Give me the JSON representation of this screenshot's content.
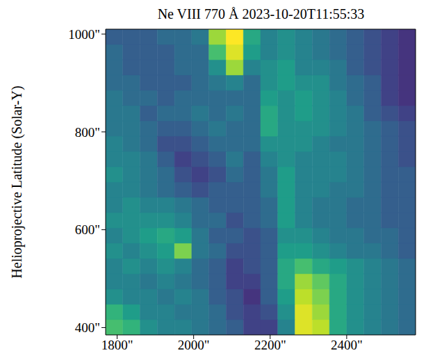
{
  "chart_data": {
    "type": "heatmap",
    "title": "Ne VIII 770 Å 2023-10-20T11:55:33",
    "y_label": "Helioprojective Latitude (Solar-Y)",
    "xlim": [
      1770,
      2580
    ],
    "ylim": [
      385,
      1010
    ],
    "xticks": [
      {
        "value": 1800,
        "label": "1800\""
      },
      {
        "value": 2000,
        "label": "2000\""
      },
      {
        "value": 2200,
        "label": "2200\""
      },
      {
        "value": 2400,
        "label": "2400\""
      }
    ],
    "yticks": [
      {
        "value": 400,
        "label": "400\""
      },
      {
        "value": 600,
        "label": "600\""
      },
      {
        "value": 800,
        "label": "800\""
      },
      {
        "value": 1000,
        "label": "1000\""
      }
    ],
    "grid": false,
    "color": "viridis",
    "value_range": [
      0,
      1
    ],
    "x_edges": [
      1770,
      1815,
      1860,
      1905,
      1950,
      1995,
      2040,
      2085,
      2130,
      2175,
      2220,
      2265,
      2310,
      2355,
      2400,
      2445,
      2490,
      2535,
      2580
    ],
    "y_edges": [
      385,
      416.25,
      447.5,
      478.75,
      510,
      541.25,
      572.5,
      603.75,
      635,
      666.25,
      697.5,
      728.75,
      760,
      791.25,
      822.5,
      853.75,
      885,
      916.25,
      947.5,
      978.75,
      1010
    ],
    "cells": [
      [
        0.7,
        0.65,
        0.5,
        0.45,
        0.45,
        0.4,
        0.35,
        0.3,
        0.2,
        0.2,
        0.45,
        0.95,
        0.9,
        0.6,
        0.5,
        0.45,
        0.4,
        0.35
      ],
      [
        0.65,
        0.55,
        0.45,
        0.45,
        0.4,
        0.4,
        0.35,
        0.25,
        0.2,
        0.25,
        0.5,
        0.95,
        0.85,
        0.6,
        0.5,
        0.45,
        0.4,
        0.35
      ],
      [
        0.5,
        0.45,
        0.45,
        0.4,
        0.45,
        0.4,
        0.3,
        0.25,
        0.15,
        0.3,
        0.55,
        0.9,
        0.8,
        0.6,
        0.5,
        0.45,
        0.4,
        0.35
      ],
      [
        0.45,
        0.45,
        0.4,
        0.45,
        0.4,
        0.35,
        0.3,
        0.2,
        0.2,
        0.3,
        0.6,
        0.85,
        0.75,
        0.6,
        0.5,
        0.45,
        0.4,
        0.35
      ],
      [
        0.45,
        0.5,
        0.45,
        0.5,
        0.45,
        0.35,
        0.3,
        0.2,
        0.25,
        0.3,
        0.6,
        0.7,
        0.6,
        0.55,
        0.5,
        0.45,
        0.4,
        0.35
      ],
      [
        0.5,
        0.45,
        0.5,
        0.55,
        0.8,
        0.4,
        0.35,
        0.25,
        0.25,
        0.3,
        0.55,
        0.55,
        0.5,
        0.45,
        0.4,
        0.4,
        0.35,
        0.3
      ],
      [
        0.45,
        0.5,
        0.55,
        0.6,
        0.55,
        0.4,
        0.3,
        0.3,
        0.25,
        0.3,
        0.5,
        0.5,
        0.45,
        0.4,
        0.4,
        0.35,
        0.35,
        0.3
      ],
      [
        0.5,
        0.5,
        0.5,
        0.5,
        0.45,
        0.35,
        0.35,
        0.25,
        0.3,
        0.35,
        0.55,
        0.45,
        0.4,
        0.4,
        0.35,
        0.35,
        0.3,
        0.3
      ],
      [
        0.45,
        0.5,
        0.45,
        0.45,
        0.4,
        0.35,
        0.3,
        0.3,
        0.3,
        0.35,
        0.55,
        0.45,
        0.4,
        0.4,
        0.35,
        0.35,
        0.3,
        0.3
      ],
      [
        0.45,
        0.45,
        0.4,
        0.35,
        0.3,
        0.25,
        0.3,
        0.3,
        0.3,
        0.4,
        0.55,
        0.45,
        0.45,
        0.4,
        0.4,
        0.35,
        0.3,
        0.3
      ],
      [
        0.5,
        0.45,
        0.4,
        0.35,
        0.25,
        0.2,
        0.25,
        0.35,
        0.3,
        0.4,
        0.55,
        0.45,
        0.45,
        0.45,
        0.4,
        0.35,
        0.3,
        0.3
      ],
      [
        0.45,
        0.45,
        0.4,
        0.3,
        0.2,
        0.25,
        0.3,
        0.4,
        0.3,
        0.45,
        0.5,
        0.45,
        0.45,
        0.45,
        0.4,
        0.35,
        0.3,
        0.25
      ],
      [
        0.45,
        0.4,
        0.35,
        0.25,
        0.25,
        0.3,
        0.35,
        0.35,
        0.35,
        0.5,
        0.5,
        0.5,
        0.45,
        0.4,
        0.4,
        0.35,
        0.3,
        0.25
      ],
      [
        0.4,
        0.4,
        0.35,
        0.3,
        0.3,
        0.35,
        0.4,
        0.35,
        0.35,
        0.6,
        0.5,
        0.5,
        0.5,
        0.45,
        0.4,
        0.35,
        0.3,
        0.25
      ],
      [
        0.4,
        0.4,
        0.3,
        0.35,
        0.35,
        0.4,
        0.35,
        0.4,
        0.35,
        0.6,
        0.5,
        0.55,
        0.5,
        0.45,
        0.4,
        0.3,
        0.25,
        0.2
      ],
      [
        0.4,
        0.35,
        0.35,
        0.3,
        0.35,
        0.35,
        0.35,
        0.35,
        0.35,
        0.55,
        0.5,
        0.55,
        0.5,
        0.45,
        0.35,
        0.3,
        0.2,
        0.15
      ],
      [
        0.35,
        0.35,
        0.3,
        0.3,
        0.3,
        0.35,
        0.4,
        0.45,
        0.35,
        0.5,
        0.55,
        0.5,
        0.5,
        0.4,
        0.35,
        0.3,
        0.2,
        0.15
      ],
      [
        0.35,
        0.3,
        0.3,
        0.3,
        0.35,
        0.35,
        0.5,
        0.85,
        0.45,
        0.5,
        0.55,
        0.45,
        0.45,
        0.4,
        0.3,
        0.25,
        0.2,
        0.15
      ],
      [
        0.35,
        0.3,
        0.3,
        0.3,
        0.35,
        0.35,
        0.7,
        0.95,
        0.55,
        0.45,
        0.5,
        0.45,
        0.4,
        0.35,
        0.3,
        0.25,
        0.2,
        0.15
      ],
      [
        0.3,
        0.3,
        0.3,
        0.35,
        0.35,
        0.4,
        0.85,
        1.0,
        0.6,
        0.45,
        0.5,
        0.45,
        0.4,
        0.35,
        0.3,
        0.25,
        0.2,
        0.15
      ]
    ]
  }
}
